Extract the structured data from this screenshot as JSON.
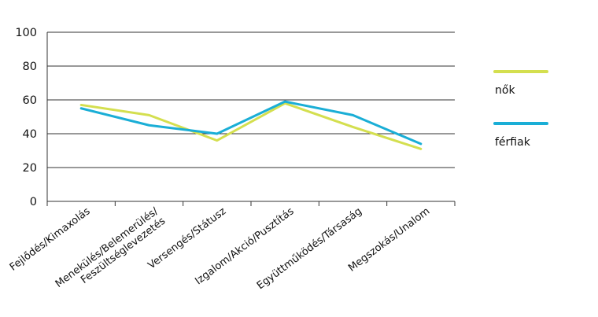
{
  "chart_data": {
    "type": "line",
    "categories": [
      [
        "Fejlődés/Kimaxolás"
      ],
      [
        "Menekülés/Belemerülés/",
        "Feszültséglevezetés"
      ],
      [
        "Versengés/Státusz"
      ],
      [
        "Izgalom/Akció/Pusztítás"
      ],
      [
        "Együttműködés/Társaság"
      ],
      [
        "Megszokás/Unalom"
      ]
    ],
    "ylim": [
      0,
      100
    ],
    "yticks": [
      0,
      20,
      40,
      60,
      80,
      100
    ],
    "grid": true,
    "legend_position": "right",
    "series": [
      {
        "name": "nők",
        "color": "#d4df4f",
        "values": [
          57,
          51,
          36,
          58,
          44,
          31
        ]
      },
      {
        "name": "férfiak",
        "color": "#1aaed6",
        "values": [
          55,
          45,
          40,
          59,
          51,
          34
        ]
      }
    ]
  }
}
